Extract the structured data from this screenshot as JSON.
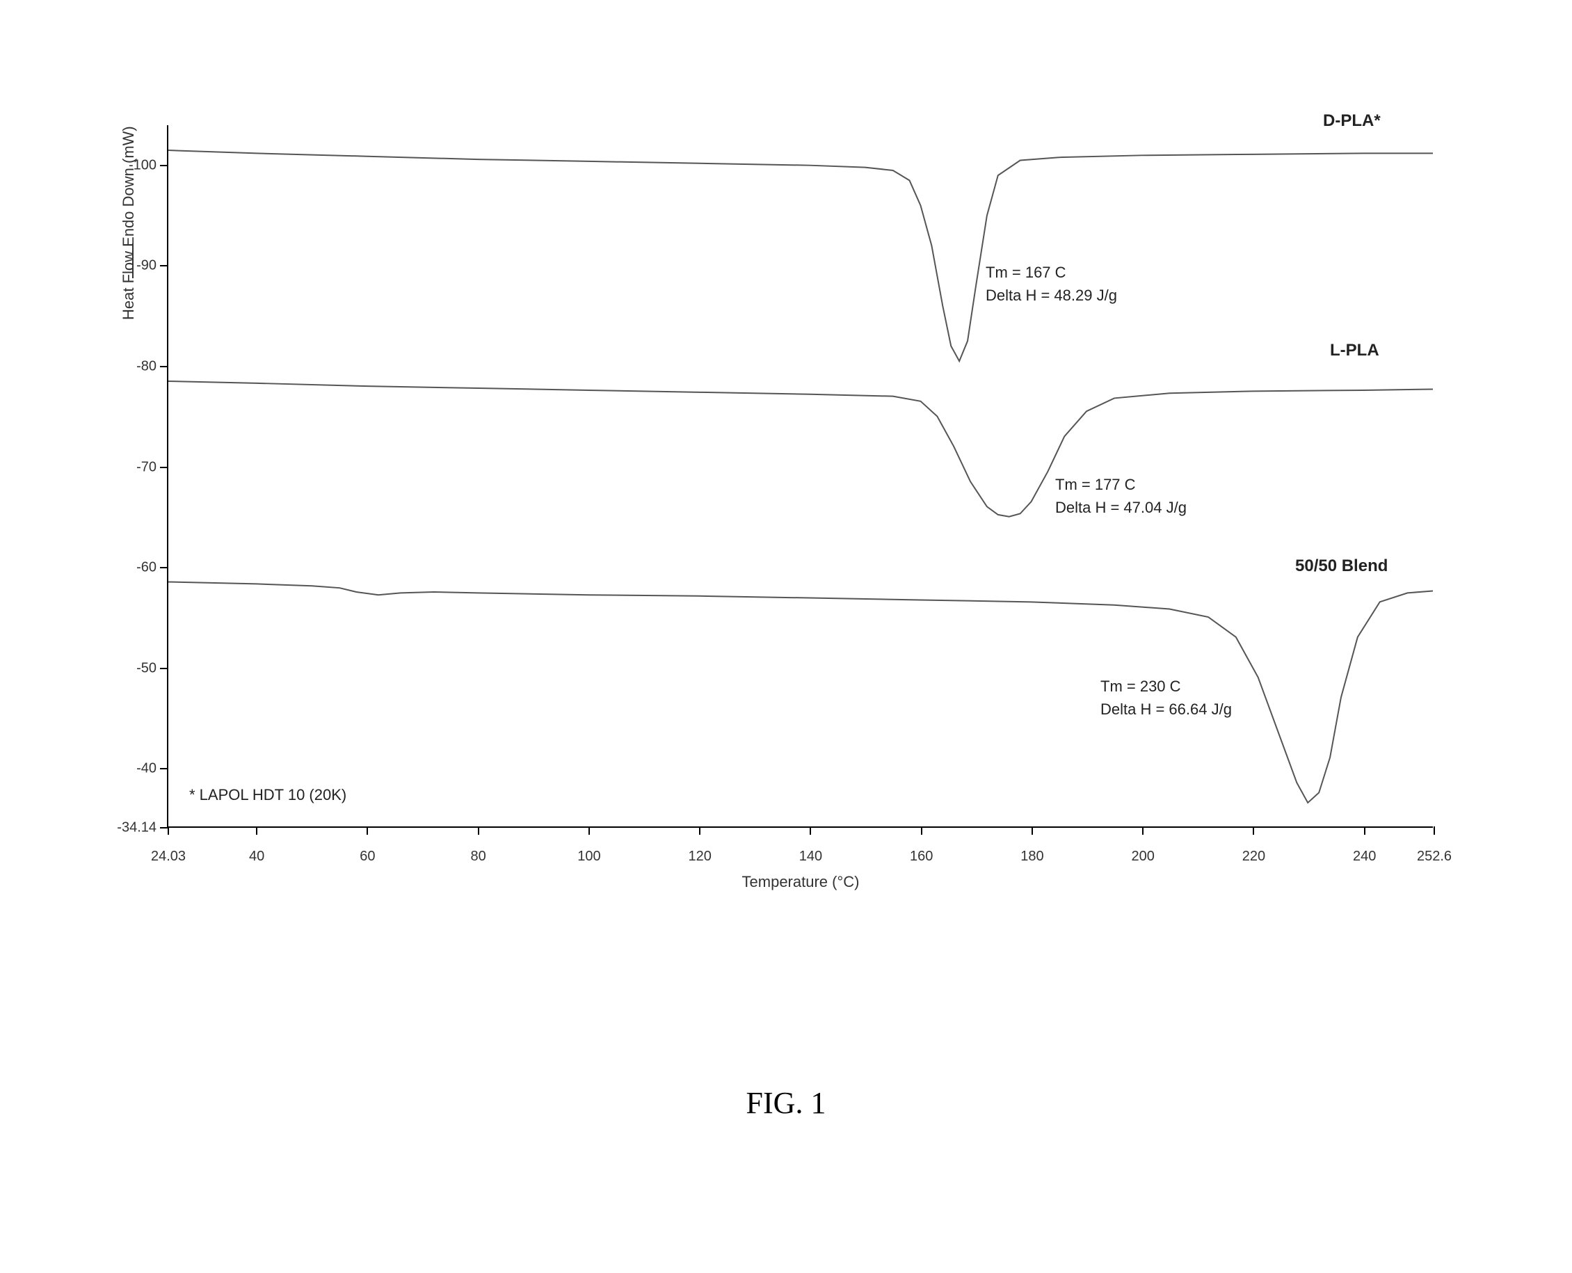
{
  "chart": {
    "type": "line",
    "x_axis_title": "Temperature (°C)",
    "y_axis_title": "Heat Flow Endo Down (mW)",
    "xlim": [
      24.03,
      252.6
    ],
    "ylim": [
      -34.14,
      -104
    ],
    "x_ticks": [
      24.03,
      40,
      60,
      80,
      100,
      120,
      140,
      160,
      180,
      200,
      220,
      240,
      252.6
    ],
    "x_tick_labels": [
      "24.03",
      "40",
      "60",
      "80",
      "100",
      "120",
      "140",
      "160",
      "180",
      "200",
      "220",
      "240",
      "252.6"
    ],
    "y_ticks": [
      -34.14,
      -40,
      -50,
      -60,
      -70,
      -80,
      -90,
      -100
    ],
    "y_tick_labels": [
      "-34.14",
      "-40",
      "-50",
      "-60",
      "-70",
      "-80",
      "-90",
      "-100"
    ],
    "background_color": "#ffffff",
    "axis_color": "#000000",
    "line_color": "#555555",
    "line_width": 2,
    "label_fontsize": 20,
    "title_fontsize": 22
  },
  "series": {
    "dpla": {
      "label": "D-PLA*",
      "tm": "Tm = 167 C",
      "delta_h": "Delta H = 48.29 J/g",
      "points": [
        [
          24.03,
          -101.5
        ],
        [
          40,
          -101.2
        ],
        [
          60,
          -100.9
        ],
        [
          80,
          -100.6
        ],
        [
          100,
          -100.4
        ],
        [
          120,
          -100.2
        ],
        [
          140,
          -100.0
        ],
        [
          150,
          -99.8
        ],
        [
          155,
          -99.5
        ],
        [
          158,
          -98.5
        ],
        [
          160,
          -96.0
        ],
        [
          162,
          -92.0
        ],
        [
          164,
          -86.0
        ],
        [
          165.5,
          -82.0
        ],
        [
          167,
          -80.5
        ],
        [
          168.5,
          -82.5
        ],
        [
          170,
          -88.0
        ],
        [
          172,
          -95.0
        ],
        [
          174,
          -99.0
        ],
        [
          178,
          -100.5
        ],
        [
          185,
          -100.8
        ],
        [
          200,
          -101.0
        ],
        [
          220,
          -101.1
        ],
        [
          240,
          -101.2
        ],
        [
          252.6,
          -101.2
        ]
      ]
    },
    "lpla": {
      "label": "L-PLA",
      "tm": "Tm = 177 C",
      "delta_h": "Delta H = 47.04 J/g",
      "points": [
        [
          24.03,
          -78.5
        ],
        [
          40,
          -78.3
        ],
        [
          60,
          -78.0
        ],
        [
          80,
          -77.8
        ],
        [
          100,
          -77.6
        ],
        [
          120,
          -77.4
        ],
        [
          140,
          -77.2
        ],
        [
          155,
          -77.0
        ],
        [
          160,
          -76.5
        ],
        [
          163,
          -75.0
        ],
        [
          166,
          -72.0
        ],
        [
          169,
          -68.5
        ],
        [
          172,
          -66.0
        ],
        [
          174,
          -65.2
        ],
        [
          176,
          -65.0
        ],
        [
          178,
          -65.3
        ],
        [
          180,
          -66.5
        ],
        [
          183,
          -69.5
        ],
        [
          186,
          -73.0
        ],
        [
          190,
          -75.5
        ],
        [
          195,
          -76.8
        ],
        [
          205,
          -77.3
        ],
        [
          220,
          -77.5
        ],
        [
          240,
          -77.6
        ],
        [
          252.6,
          -77.7
        ]
      ]
    },
    "blend": {
      "label": "50/50 Blend",
      "tm": "Tm = 230 C",
      "delta_h": "Delta H = 66.64 J/g",
      "points": [
        [
          24.03,
          -58.5
        ],
        [
          40,
          -58.3
        ],
        [
          50,
          -58.1
        ],
        [
          55,
          -57.9
        ],
        [
          58,
          -57.5
        ],
        [
          62,
          -57.2
        ],
        [
          66,
          -57.4
        ],
        [
          72,
          -57.5
        ],
        [
          80,
          -57.4
        ],
        [
          100,
          -57.2
        ],
        [
          120,
          -57.1
        ],
        [
          140,
          -56.9
        ],
        [
          160,
          -56.7
        ],
        [
          180,
          -56.5
        ],
        [
          195,
          -56.2
        ],
        [
          205,
          -55.8
        ],
        [
          212,
          -55.0
        ],
        [
          217,
          -53.0
        ],
        [
          221,
          -49.0
        ],
        [
          225,
          -43.0
        ],
        [
          228,
          -38.5
        ],
        [
          230,
          -36.5
        ],
        [
          232,
          -37.5
        ],
        [
          234,
          -41.0
        ],
        [
          236,
          -47.0
        ],
        [
          239,
          -53.0
        ],
        [
          243,
          -56.5
        ],
        [
          248,
          -57.4
        ],
        [
          252.6,
          -57.6
        ]
      ]
    }
  },
  "footnote": "* LAPOL HDT 10 (20K)",
  "figure_caption": "FIG. 1"
}
